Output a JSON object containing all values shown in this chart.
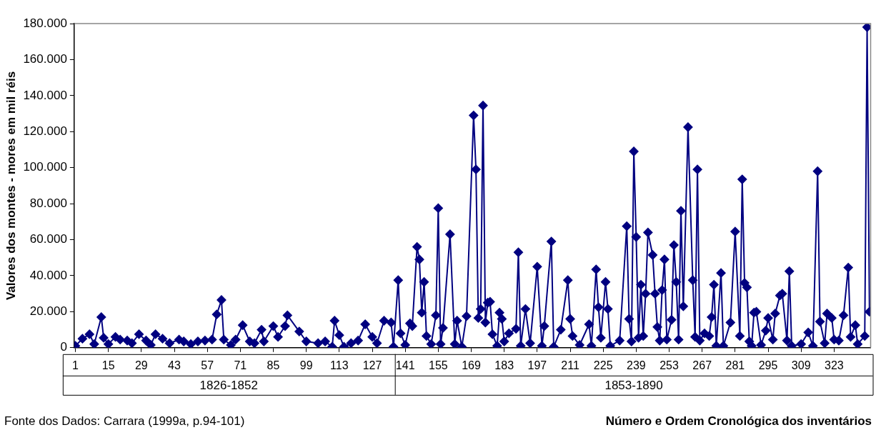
{
  "chart_data": {
    "type": "line",
    "xlabel": "Número e Ordem Cronológica dos inventários",
    "ylabel": "Valores dos montes - mores em mil réis",
    "annotations": [
      "1826-1852",
      "1853-1890",
      "Fonte dos Dados: Carrara (1999a, p.94-101)"
    ],
    "xlim": [
      0.5,
      338.5
    ],
    "xticks": [
      1,
      15,
      29,
      43,
      57,
      71,
      85,
      99,
      113,
      127,
      141,
      155,
      169,
      183,
      197,
      211,
      225,
      239,
      253,
      267,
      281,
      295,
      309,
      323
    ],
    "ylim": [
      0,
      180000
    ],
    "yticks": [
      0,
      {
        "value": 20000,
        "label": "20.000"
      },
      {
        "value": 40000,
        "label": "40.000"
      },
      {
        "value": 60000,
        "label": "60.000"
      },
      {
        "value": 80000,
        "label": "80.000"
      },
      {
        "value": 100000,
        "label": "100.000"
      },
      {
        "value": 120000,
        "label": "120.000"
      },
      {
        "value": 140000,
        "label": "140.000"
      },
      {
        "value": 160000,
        "label": "160.000"
      },
      {
        "value": 180000,
        "label": "180.000"
      }
    ],
    "grid": false,
    "legend": false,
    "marker": "diamond",
    "line_style": "solid",
    "series": [
      {
        "color": "#000080",
        "x": [
          1,
          4,
          7,
          9,
          12,
          13,
          15,
          18,
          20,
          23,
          25,
          28,
          31,
          33,
          35,
          38,
          41,
          45,
          47,
          50,
          53,
          56,
          59,
          61,
          63,
          64,
          67,
          69,
          72,
          75,
          77,
          80,
          81,
          85,
          87,
          90,
          91,
          96,
          99,
          104,
          107,
          110,
          111,
          113,
          115,
          118,
          121,
          124,
          127,
          129,
          132,
          135,
          136,
          138,
          139,
          141,
          143,
          144,
          146,
          147,
          148,
          149,
          150,
          152,
          154,
          155,
          156,
          157,
          160,
          162,
          163,
          165,
          167,
          170,
          171,
          172,
          173,
          174,
          175,
          176,
          177,
          178,
          180,
          181,
          182,
          183,
          185,
          188,
          189,
          190,
          192,
          194,
          197,
          199,
          200,
          203,
          204,
          207,
          210,
          211,
          212,
          215,
          219,
          220,
          222,
          223,
          224,
          226,
          227,
          228,
          232,
          235,
          236,
          237,
          238,
          239,
          240,
          241,
          242,
          243,
          244,
          246,
          247,
          248,
          249,
          250,
          251,
          252,
          254,
          255,
          256,
          257,
          258,
          259,
          261,
          263,
          264,
          265,
          266,
          268,
          270,
          271,
          272,
          273,
          275,
          276,
          279,
          281,
          283,
          284,
          285,
          286,
          287,
          288,
          289,
          290,
          292,
          294,
          295,
          297,
          298,
          300,
          301,
          303,
          304,
          305,
          309,
          312,
          314,
          316,
          317,
          319,
          320,
          322,
          323,
          325,
          327,
          329,
          330,
          332,
          333,
          336,
          337,
          338
        ],
        "values": [
          1000,
          5000,
          7500,
          2000,
          17000,
          5500,
          2000,
          6000,
          4500,
          4000,
          2500,
          7500,
          4000,
          1500,
          7500,
          5000,
          2500,
          4500,
          3500,
          2000,
          3500,
          4000,
          4500,
          18500,
          26500,
          4500,
          1500,
          4500,
          12500,
          3500,
          2500,
          10000,
          3500,
          12000,
          6000,
          12000,
          18000,
          9000,
          3500,
          2500,
          3500,
          500,
          15000,
          7000,
          500,
          2500,
          4000,
          13000,
          6000,
          2500,
          15000,
          14000,
          500,
          37500,
          8000,
          1500,
          13500,
          12000,
          56000,
          49000,
          19500,
          36500,
          6500,
          2000,
          18000,
          77500,
          2000,
          11000,
          63000,
          2000,
          15000,
          500,
          17500,
          129000,
          99000,
          16500,
          21500,
          134500,
          14000,
          25000,
          25500,
          7500,
          1000,
          19500,
          16000,
          3500,
          8000,
          10500,
          53000,
          1000,
          21500,
          2500,
          45000,
          1000,
          12000,
          59000,
          500,
          10000,
          37500,
          16000,
          6500,
          1500,
          13000,
          1000,
          43500,
          22500,
          5500,
          36500,
          21500,
          1000,
          4000,
          67500,
          16000,
          3500,
          109000,
          61500,
          5500,
          35000,
          6500,
          30000,
          64000,
          51500,
          30000,
          11500,
          4000,
          32000,
          49000,
          4500,
          15500,
          57000,
          36500,
          4500,
          76000,
          23000,
          122500,
          37500,
          6000,
          99000,
          4000,
          8000,
          6500,
          17000,
          35000,
          1000,
          41500,
          1000,
          14000,
          64500,
          6500,
          93500,
          36000,
          33500,
          3500,
          1000,
          19500,
          20000,
          1500,
          9500,
          16500,
          4500,
          19000,
          29000,
          30000,
          4000,
          42500,
          1000,
          2000,
          8500,
          1000,
          98000,
          14500,
          2500,
          19000,
          16500,
          4500,
          4000,
          18000,
          44500,
          6000,
          12500,
          2000,
          6500,
          178000,
          20000
        ]
      }
    ]
  }
}
